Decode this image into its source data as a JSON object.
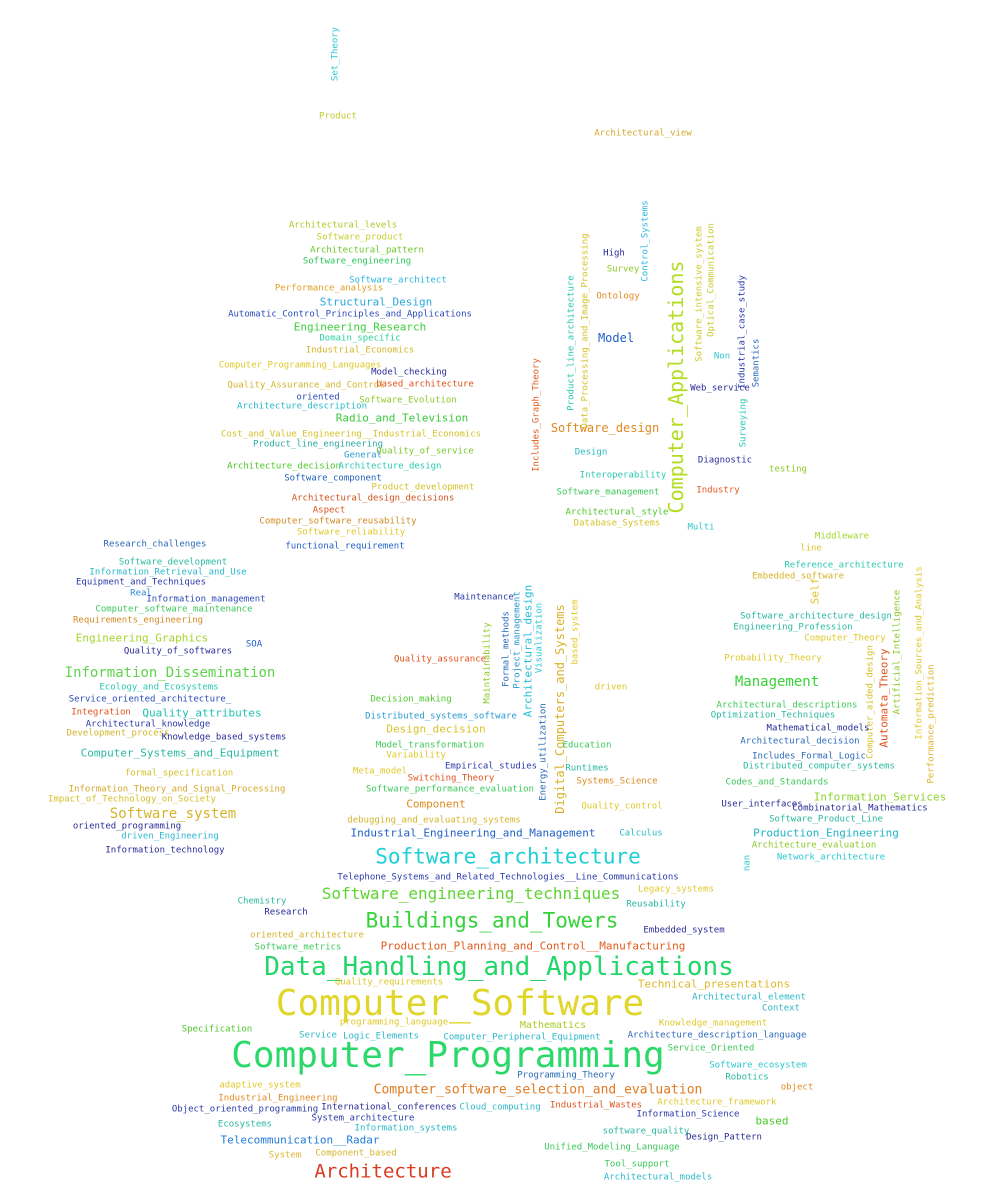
{
  "words": [
    {
      "text": "Computer_Programming",
      "color": "#2bd86a"
    },
    {
      "text": "Computer_Software",
      "color": "#e0d62a"
    },
    {
      "text": "Data_Handling_and_Applications",
      "color": "#22d66a"
    },
    {
      "text": "Buildings_and_Towers",
      "color": "#35d33a"
    },
    {
      "text": "Software_architecture",
      "color": "#1ecfd6"
    },
    {
      "text": "Software_engineering_techniques",
      "color": "#5ed432"
    },
    {
      "text": "Architecture",
      "color": "#d93b21"
    },
    {
      "text": "Computer_Applications",
      "color": "#b4dc22"
    },
    {
      "text": "Computer_software_selection_and_evaluation",
      "color": "#e07a22"
    },
    {
      "text": "Production_Planning_and_Control__Manufacturing",
      "color": "#e05a1c"
    },
    {
      "text": "Industrial_Engineering_and_Management",
      "color": "#1f5fc8"
    },
    {
      "text": "Software_system",
      "color": "#d4b42a"
    },
    {
      "text": "Management",
      "color": "#38d336"
    },
    {
      "text": "Information_Dissemination",
      "color": "#5ed44a"
    },
    {
      "text": "Digital_Computers_and_Systems",
      "color": "#d9b22a"
    },
    {
      "text": "Radio_and_Television",
      "color": "#38c93c"
    },
    {
      "text": "Engineering_Research",
      "color": "#3ccf3a"
    },
    {
      "text": "Structural_Design",
      "color": "#2aa8e0"
    },
    {
      "text": "Software_design",
      "color": "#e08a22"
    },
    {
      "text": "Model",
      "color": "#1f5fc8"
    },
    {
      "text": "Telecommunication__Radar",
      "color": "#1f7ad8"
    },
    {
      "text": "Technical_presentations",
      "color": "#e0b82a"
    },
    {
      "text": "Engineering_Graphics",
      "color": "#a6d42a"
    },
    {
      "text": "Quality_attributes",
      "color": "#1fc2b0"
    },
    {
      "text": "Computer_Systems_and_Equipment",
      "color": "#2ab8a0"
    },
    {
      "text": "Design_decision",
      "color": "#d9c22a"
    },
    {
      "text": "Component",
      "color": "#e08a22"
    },
    {
      "text": "Architectural_design",
      "color": "#22bfd8"
    },
    {
      "text": "Automata_Theory",
      "color": "#e0521c"
    },
    {
      "text": "Information_Services",
      "color": "#8ed42a"
    },
    {
      "text": "Production_Engineering",
      "color": "#1fb4c8"
    },
    {
      "text": "Mathematics",
      "color": "#a6cc22"
    },
    {
      "text": "based",
      "color": "#4cc82a"
    },
    {
      "text": "Self",
      "color": "#e0c22a"
    },
    {
      "text": "Set_Theory",
      "color": "#2ac8d0"
    },
    {
      "text": "Product",
      "color": "#c4c82a"
    },
    {
      "text": "Architectural_view",
      "color": "#d4a82a"
    },
    {
      "text": "Architectural_levels",
      "color": "#b4c42a"
    },
    {
      "text": "Software_product",
      "color": "#c4d02a"
    },
    {
      "text": "Architectural_pattern",
      "color": "#6cc82a"
    },
    {
      "text": "Software_engineering",
      "color": "#2cc85a"
    },
    {
      "text": "Software_architect",
      "color": "#2ab8e0"
    },
    {
      "text": "Performance_analysis",
      "color": "#e0a022"
    },
    {
      "text": "Automatic_Control_Principles_and_Applications",
      "color": "#2a4ab8"
    },
    {
      "text": "Domain_specific",
      "color": "#2ad0a0"
    },
    {
      "text": "Industrial_Economics",
      "color": "#d4b42a"
    },
    {
      "text": "Computer_Programming_Languages",
      "color": "#e0c82a"
    },
    {
      "text": "Model_checking",
      "color": "#2a2a98"
    },
    {
      "text": "Quality_Assurance_and_Control",
      "color": "#d4b42a"
    },
    {
      "text": "based_architecture",
      "color": "#e0521c"
    },
    {
      "text": "oriented",
      "color": "#2a4ab8"
    },
    {
      "text": "Software_Evolution",
      "color": "#8ec82a"
    },
    {
      "text": "Architecture_description",
      "color": "#2ab8c8"
    },
    {
      "text": "Cost_and_Value_Engineering__Industrial_Economics",
      "color": "#d4c22a"
    },
    {
      "text": "Product_line_engineering",
      "color": "#2aa8a0"
    },
    {
      "text": "Quality_of_service",
      "color": "#7ac82a"
    },
    {
      "text": "General",
      "color": "#2a9ad0"
    },
    {
      "text": "Architecture_decision",
      "color": "#4cc82a"
    },
    {
      "text": "Architecture_design",
      "color": "#2ac8b0"
    },
    {
      "text": "Software_component",
      "color": "#1f5fb8"
    },
    {
      "text": "Product_development",
      "color": "#d4c02a"
    },
    {
      "text": "Architectural_design_decisions",
      "color": "#d0521c"
    },
    {
      "text": "Aspect",
      "color": "#e0521c"
    },
    {
      "text": "Computer_software_reusability",
      "color": "#d08a22"
    },
    {
      "text": "Software_reliability",
      "color": "#e0c82a"
    },
    {
      "text": "functional_requirement",
      "color": "#1f5fc8"
    },
    {
      "text": "Research_challenges",
      "color": "#2a6ab8"
    },
    {
      "text": "Software_development",
      "color": "#2ab8a0"
    },
    {
      "text": "Information_Retrieval_and_Use",
      "color": "#2ab8c8"
    },
    {
      "text": "Equipment_and_Techniques",
      "color": "#2a3aa8"
    },
    {
      "text": "Real",
      "color": "#2a8ad0"
    },
    {
      "text": "Information_management",
      "color": "#2a4ab8"
    },
    {
      "text": "Computer_software_maintenance",
      "color": "#3cc85a"
    },
    {
      "text": "Requirements_engineering",
      "color": "#d08a22"
    },
    {
      "text": "SOA",
      "color": "#1f5fc8"
    },
    {
      "text": "Quality_of_softwares",
      "color": "#2a2a98"
    },
    {
      "text": "Ecology_and_Ecosystems",
      "color": "#2ac8b0"
    },
    {
      "text": "Service_oriented_architecture_",
      "color": "#2a4ab8"
    },
    {
      "text": "Integration",
      "color": "#e0521c"
    },
    {
      "text": "Architectural_knowledge",
      "color": "#2a3aa8"
    },
    {
      "text": "Development_process",
      "color": "#d4b42a"
    },
    {
      "text": "Knowledge_based_systems",
      "color": "#2a2a98"
    },
    {
      "text": "formal_specification",
      "color": "#d4c22a"
    },
    {
      "text": "Information_Theory_and_Signal_Processing",
      "color": "#d4a82a"
    },
    {
      "text": "Impact_of_Technology_on_Society",
      "color": "#d4c02a"
    },
    {
      "text": "oriented_programming",
      "color": "#2a2a98"
    },
    {
      "text": "driven_Engineering",
      "color": "#2ab8d0"
    },
    {
      "text": "Information_technology",
      "color": "#2a2a98"
    },
    {
      "text": "High",
      "color": "#2a2a98"
    },
    {
      "text": "Control_Systems",
      "color": "#2ab8e0"
    },
    {
      "text": "Survey",
      "color": "#8ec82a"
    },
    {
      "text": "Ontology",
      "color": "#e08a22"
    },
    {
      "text": "Product_line_architecture",
      "color": "#2ac8b0"
    },
    {
      "text": "Data_Processing_and_Image_Processing",
      "color": "#d4c22a"
    },
    {
      "text": "Includes_Graph_Theory",
      "color": "#e05a1c"
    },
    {
      "text": "Software_intensive_system",
      "color": "#d4c82a"
    },
    {
      "text": "Optical_Communication",
      "color": "#c4cc2a"
    },
    {
      "text": "Industrial_case_study",
      "color": "#2a3aa8"
    },
    {
      "text": "Non",
      "color": "#2ac8d0"
    },
    {
      "text": "Web_service",
      "color": "#2a2a98"
    },
    {
      "text": "Surveying",
      "color": "#2ac8b0"
    },
    {
      "text": "Semantics",
      "color": "#2a6ab8"
    },
    {
      "text": "Design",
      "color": "#2ab8c8"
    },
    {
      "text": "Diagnostic",
      "color": "#2a2a98"
    },
    {
      "text": "testing",
      "color": "#8ec82a"
    },
    {
      "text": "Interoperability",
      "color": "#2ac8b0"
    },
    {
      "text": "Industry",
      "color": "#e05a1c"
    },
    {
      "text": "Software_management",
      "color": "#3cc85a"
    },
    {
      "text": "Architectural_style",
      "color": "#4cc82a"
    },
    {
      "text": "Database_Systems",
      "color": "#d4c22a"
    },
    {
      "text": "Multi",
      "color": "#2ac8d0"
    },
    {
      "text": "Middleware",
      "color": "#a6d42a"
    },
    {
      "text": "line",
      "color": "#e0c82a"
    },
    {
      "text": "Reference_architecture",
      "color": "#2ac8b0"
    },
    {
      "text": "Embedded_software",
      "color": "#d4b42a"
    },
    {
      "text": "Software_architecture_design",
      "color": "#2ab8a0"
    },
    {
      "text": "Engineering_Profession",
      "color": "#2ab8a0"
    },
    {
      "text": "Computer_Theory",
      "color": "#e0c82a"
    },
    {
      "text": "Artificial_Intelligence",
      "color": "#8ec82a"
    },
    {
      "text": "Information_Sources_and_Analysis",
      "color": "#e0c82a"
    },
    {
      "text": "Performance_prediction",
      "color": "#e0b42a"
    },
    {
      "text": "Probability_Theory",
      "color": "#e0c82a"
    },
    {
      "text": "Computer_aided_design",
      "color": "#d4c22a"
    },
    {
      "text": "Architectural_descriptions",
      "color": "#3cc85a"
    },
    {
      "text": "Optimization_Techniques",
      "color": "#2ab8a0"
    },
    {
      "text": "Mathematical_models",
      "color": "#2a2a98"
    },
    {
      "text": "Architectural_decision",
      "color": "#2a6ab8"
    },
    {
      "text": "Includes_Formal_Logic",
      "color": "#2a6ab8"
    },
    {
      "text": "Distributed_computer_systems",
      "color": "#2ab8a0"
    },
    {
      "text": "Codes_and_Standards",
      "color": "#3cc85a"
    },
    {
      "text": "User_interfaces",
      "color": "#2a2a98"
    },
    {
      "text": "Combinatorial_Mathematics",
      "color": "#2a2a98"
    },
    {
      "text": "Software_Product_Line",
      "color": "#2ab8a0"
    },
    {
      "text": "Architecture_evaluation",
      "color": "#8ec82a"
    },
    {
      "text": "Network_architecture",
      "color": "#2ac8d0"
    },
    {
      "text": "nan",
      "color": "#2ac8d0"
    },
    {
      "text": "Maintenance",
      "color": "#2a3aa8"
    },
    {
      "text": "Maintainability",
      "color": "#8ec82a"
    },
    {
      "text": "Formal_methods",
      "color": "#2a6ab8"
    },
    {
      "text": "Project_management",
      "color": "#2a9ad0"
    },
    {
      "text": "Visualization",
      "color": "#2ac8d0"
    },
    {
      "text": "based_system",
      "color": "#e0c82a"
    },
    {
      "text": "driven",
      "color": "#e0c82a"
    },
    {
      "text": "Quality_assurance",
      "color": "#e0521c"
    },
    {
      "text": "Decision_making",
      "color": "#4cc82a"
    },
    {
      "text": "Distributed_systems_software",
      "color": "#2a9ad0"
    },
    {
      "text": "Energy_utilization",
      "color": "#2a6ab8"
    },
    {
      "text": "Education",
      "color": "#3cc85a"
    },
    {
      "text": "Model_transformation",
      "color": "#3cc85a"
    },
    {
      "text": "Variability",
      "color": "#e0c82a"
    },
    {
      "text": "Empirical_studies",
      "color": "#2a3aa8"
    },
    {
      "text": "Meta_model",
      "color": "#e0c82a"
    },
    {
      "text": "Switching_Theory",
      "color": "#e0521c"
    },
    {
      "text": "Runtimes",
      "color": "#2ab8a0"
    },
    {
      "text": "Systems_Science",
      "color": "#e08a22"
    },
    {
      "text": "Software_performance_evaluation",
      "color": "#3cc85a"
    },
    {
      "text": "Quality_control",
      "color": "#e0c82a"
    },
    {
      "text": "debugging_and_evaluating_systems",
      "color": "#d4b42a"
    },
    {
      "text": "Calculus",
      "color": "#2ab8c8"
    },
    {
      "text": "Telephone_Systems_and_Related_Technologies__Line_Communications",
      "color": "#2a3aa8"
    },
    {
      "text": "Legacy_systems",
      "color": "#e0c82a"
    },
    {
      "text": "Chemistry",
      "color": "#2ab8a0"
    },
    {
      "text": "Research",
      "color": "#2a2a98"
    },
    {
      "text": "Reusability",
      "color": "#2ab8a0"
    },
    {
      "text": "oriented_architecture",
      "color": "#d4b42a"
    },
    {
      "text": "Embedded_system",
      "color": "#2a2a98"
    },
    {
      "text": "Software_metrics",
      "color": "#3cc85a"
    },
    {
      "text": "Quality_requirements",
      "color": "#e0c82a"
    },
    {
      "text": "Architectural_element",
      "color": "#2ab8c8"
    },
    {
      "text": "Context",
      "color": "#2ab8c8"
    },
    {
      "text": "Specification",
      "color": "#4cc82a"
    },
    {
      "text": "programming_language",
      "color": "#e0c82a"
    },
    {
      "text": "Knowledge_management",
      "color": "#e0c82a"
    },
    {
      "text": "Service",
      "color": "#2ab8c8"
    },
    {
      "text": "Logic_Elements",
      "color": "#2ab8c8"
    },
    {
      "text": "Computer_Peripheral_Equipment",
      "color": "#2ab8c8"
    },
    {
      "text": "Architecture_description_language",
      "color": "#2a6ab8"
    },
    {
      "text": "Service_Oriented",
      "color": "#3cc85a"
    },
    {
      "text": "Programming_Theory",
      "color": "#2a6ab8"
    },
    {
      "text": "Software_ecosystem",
      "color": "#2ac8d0"
    },
    {
      "text": "Robotics",
      "color": "#2ab8a0"
    },
    {
      "text": "adaptive_system",
      "color": "#e0c82a"
    },
    {
      "text": "object",
      "color": "#e08a22"
    },
    {
      "text": "Industrial_Engineering",
      "color": "#e08a22"
    },
    {
      "text": "Architecture_framework",
      "color": "#e0c82a"
    },
    {
      "text": "Object_oriented_programming",
      "color": "#2a3aa8"
    },
    {
      "text": "International_conferences",
      "color": "#2a2a98"
    },
    {
      "text": "Cloud_computing",
      "color": "#2ab8c8"
    },
    {
      "text": "Industrial_Wastes",
      "color": "#e0521c"
    },
    {
      "text": "System_architecture",
      "color": "#2a3aa8"
    },
    {
      "text": "Information_Science",
      "color": "#2a3aa8"
    },
    {
      "text": "Ecosystems",
      "color": "#2ab8a0"
    },
    {
      "text": "Information_systems",
      "color": "#2ab8c8"
    },
    {
      "text": "software_quality",
      "color": "#2ab8a0"
    },
    {
      "text": "Design_Pattern",
      "color": "#2a2a98"
    },
    {
      "text": "Unified_Modeling_Language",
      "color": "#3cc85a"
    },
    {
      "text": "System",
      "color": "#e0b42a"
    },
    {
      "text": "Component_based",
      "color": "#d4b42a"
    },
    {
      "text": "Tool_support",
      "color": "#3cc85a"
    },
    {
      "text": "Architectural_models",
      "color": "#2ab8c8"
    }
  ]
}
